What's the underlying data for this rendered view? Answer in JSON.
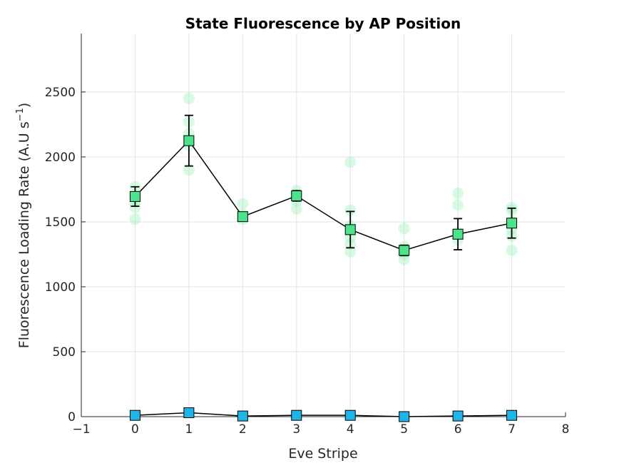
{
  "chart_data": {
    "type": "line",
    "title": "State Fluorescence by AP Position",
    "xlabel": "Eve Stripe",
    "ylabel": {
      "main": "Fluorescence Loading Rate (A.U s",
      "superscript": "−1",
      "close": ")"
    },
    "xlim": [
      -1,
      8
    ],
    "ylim": [
      0,
      2950
    ],
    "xticks": [
      -1,
      0,
      1,
      2,
      3,
      4,
      5,
      6,
      7,
      8
    ],
    "xtick_labels": [
      "−1",
      "0",
      "1",
      "2",
      "3",
      "4",
      "5",
      "6",
      "7",
      "8"
    ],
    "yticks": [
      0,
      500,
      1000,
      1500,
      2000,
      2500
    ],
    "ytick_labels": [
      "0",
      "500",
      "1000",
      "1500",
      "2000",
      "2500"
    ],
    "grid": true,
    "series": [
      {
        "x": [
          0,
          1,
          2,
          3,
          4,
          5,
          6,
          7
        ],
        "y": [
          1695,
          2125,
          1540,
          1700,
          1440,
          1280,
          1405,
          1490
        ],
        "err": [
          75,
          195,
          25,
          40,
          140,
          40,
          120,
          115
        ],
        "marker": "square",
        "color": "#4be38c",
        "line_color": "#000000"
      },
      {
        "x": [
          0,
          1,
          2,
          3,
          4,
          5,
          6,
          7
        ],
        "y": [
          10,
          30,
          5,
          10,
          10,
          0,
          5,
          10
        ],
        "err": [
          0,
          0,
          0,
          0,
          0,
          0,
          0,
          0
        ],
        "marker": "square",
        "color": "#1fb5e8",
        "line_color": "#000000"
      }
    ],
    "scatter_points": {
      "color": "#8ef0b4",
      "points": [
        [
          0,
          1770
        ],
        [
          0,
          1700
        ],
        [
          0,
          1650
        ],
        [
          0,
          1610
        ],
        [
          0,
          1520
        ],
        [
          1,
          2450
        ],
        [
          1,
          2270
        ],
        [
          1,
          2180
        ],
        [
          1,
          2090
        ],
        [
          1,
          1900
        ],
        [
          2,
          1640
        ],
        [
          2,
          1560
        ],
        [
          2,
          1520
        ],
        [
          3,
          1740
        ],
        [
          3,
          1710
        ],
        [
          3,
          1660
        ],
        [
          3,
          1600
        ],
        [
          4,
          1960
        ],
        [
          4,
          1590
        ],
        [
          4,
          1470
        ],
        [
          4,
          1380
        ],
        [
          4,
          1330
        ],
        [
          4,
          1270
        ],
        [
          5,
          1450
        ],
        [
          5,
          1310
        ],
        [
          5,
          1250
        ],
        [
          5,
          1210
        ],
        [
          6,
          1720
        ],
        [
          6,
          1630
        ],
        [
          6,
          1420
        ],
        [
          6,
          1360
        ],
        [
          7,
          1610
        ],
        [
          7,
          1590
        ],
        [
          7,
          1500
        ],
        [
          7,
          1440
        ],
        [
          7,
          1390
        ],
        [
          7,
          1280
        ]
      ]
    }
  }
}
